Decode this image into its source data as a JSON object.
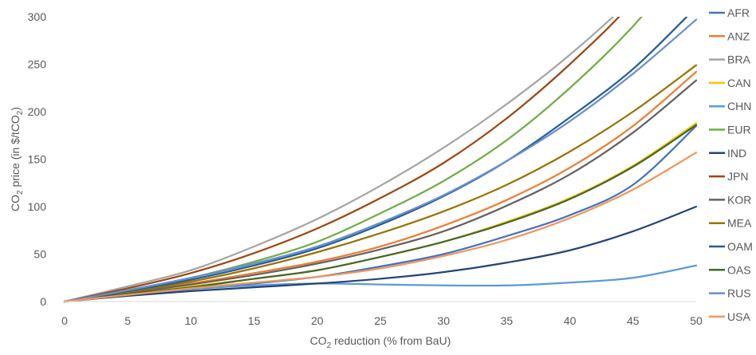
{
  "chart_data": {
    "type": "line",
    "title": "",
    "xlabel": "CO2 reduction (% from BaU)",
    "ylabel": "CO2 price (in $/tCO2)",
    "xlim": [
      0,
      50
    ],
    "ylim": [
      0,
      300
    ],
    "x_ticks": [
      "0",
      "5",
      "10",
      "15",
      "20",
      "25",
      "30",
      "35",
      "40",
      "45",
      "50"
    ],
    "y_ticks": [
      "0",
      "50",
      "100",
      "150",
      "200",
      "250",
      "300"
    ],
    "grid": false,
    "legend_position": "right",
    "x": [
      0,
      5,
      10,
      15,
      20,
      25,
      30,
      35,
      40,
      45,
      50
    ],
    "series": [
      {
        "name": "AFR",
        "color": "#4472C4",
        "values": [
          0,
          7,
          13,
          19,
          26,
          37,
          50,
          69,
          91,
          123,
          185
        ]
      },
      {
        "name": "ANZ",
        "color": "#ED7D31",
        "values": [
          0,
          10,
          19,
          30,
          42,
          58,
          80,
          107,
          141,
          185,
          242
        ]
      },
      {
        "name": "BRA",
        "color": "#A5A5A5",
        "values": [
          0,
          16,
          33,
          58,
          87,
          122,
          162,
          208,
          260,
          320,
          390
        ]
      },
      {
        "name": "CAN",
        "color": "#FFC000",
        "values": [
          0,
          8,
          16,
          24,
          33,
          47,
          63,
          84,
          109,
          143,
          188
        ]
      },
      {
        "name": "CHN",
        "color": "#5B9BD5",
        "values": [
          0,
          7,
          13,
          17,
          19,
          18,
          17,
          17,
          20,
          25,
          38
        ]
      },
      {
        "name": "EUR",
        "color": "#70AD47",
        "values": [
          0,
          12,
          25,
          42,
          63,
          93,
          127,
          170,
          225,
          290,
          370
        ]
      },
      {
        "name": "IND",
        "color": "#264478",
        "values": [
          0,
          6,
          11,
          15,
          19,
          24,
          31,
          41,
          54,
          74,
          100
        ]
      },
      {
        "name": "JPN",
        "color": "#9E480E",
        "values": [
          0,
          14,
          30,
          51,
          77,
          109,
          146,
          193,
          250,
          316,
          400
        ]
      },
      {
        "name": "KOR",
        "color": "#636363",
        "values": [
          0,
          9,
          18,
          28,
          40,
          55,
          74,
          101,
          134,
          178,
          233
        ]
      },
      {
        "name": "MEA",
        "color": "#997300",
        "values": [
          0,
          10,
          21,
          35,
          52,
          72,
          95,
          123,
          158,
          200,
          249
        ]
      },
      {
        "name": "OAM",
        "color": "#255E91",
        "values": [
          0,
          11,
          23,
          38,
          56,
          81,
          111,
          148,
          194,
          245,
          310
        ]
      },
      {
        "name": "OAS",
        "color": "#43682B",
        "values": [
          0,
          8,
          15,
          24,
          33,
          47,
          63,
          83,
          108,
          142,
          186
        ]
      },
      {
        "name": "RUS",
        "color": "#698ED0",
        "values": [
          0,
          12,
          25,
          40,
          58,
          83,
          112,
          148,
          190,
          240,
          297
        ]
      },
      {
        "name": "USA",
        "color": "#F1975A",
        "values": [
          0,
          7,
          14,
          20,
          26,
          35,
          48,
          65,
          88,
          118,
          157
        ]
      }
    ]
  }
}
